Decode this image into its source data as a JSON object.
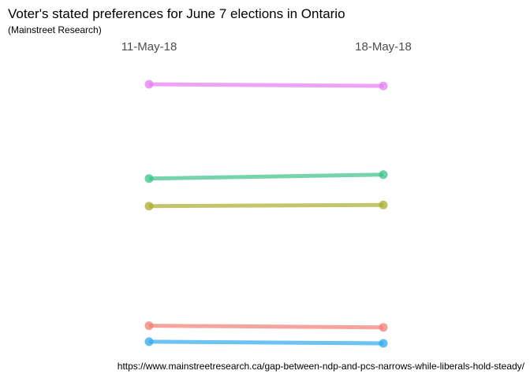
{
  "chart_data": {
    "type": "line",
    "title": "Voter's stated preferences for June 7 elections in Ontario",
    "subtitle": "(Mainstreet Research)",
    "caption": "https://www.mainstreetresearch.ca/gap-between-ndp-and-pcs-narrows-while-liberals-hold-steady/",
    "x": [
      "11-May-18",
      "18-May-18"
    ],
    "xlabel": "",
    "ylabel": "",
    "ylim": [
      0,
      50
    ],
    "grid": false,
    "legend": "none",
    "series": [
      {
        "color": "#e57ef2",
        "values": [
          47.0,
          46.7
        ]
      },
      {
        "color": "#3cc28a",
        "values": [
          29.9,
          30.6
        ]
      },
      {
        "color": "#a9ad2e",
        "values": [
          24.9,
          25.1
        ]
      },
      {
        "color": "#f17f75",
        "values": [
          3.2,
          2.9
        ]
      },
      {
        "color": "#2eaaf0",
        "values": [
          0.3,
          0.0
        ]
      }
    ]
  }
}
